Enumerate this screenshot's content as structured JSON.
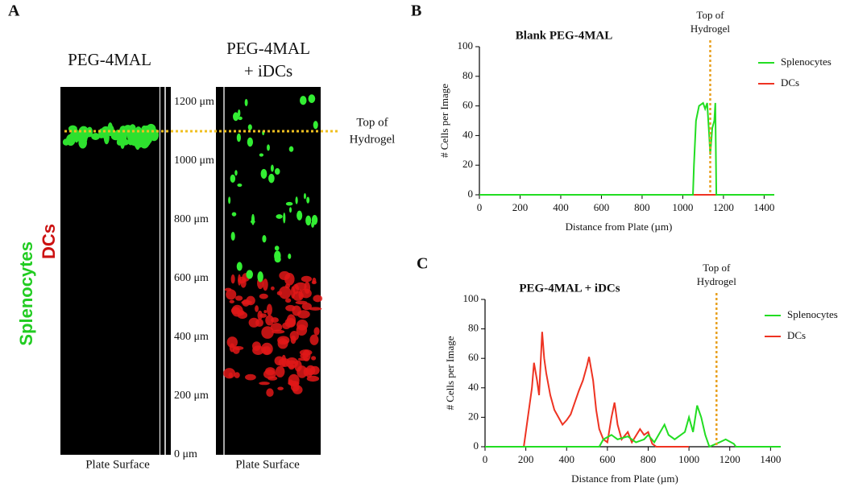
{
  "panel_a": {
    "letter": "A",
    "left_title": "PEG-4MAL",
    "right_title": [
      "PEG-4MAL",
      "+ iDCs"
    ],
    "left_footer": "Plate Surface",
    "right_footer": "Plate Surface",
    "scale_labels": [
      "0 μm",
      "200 μm",
      "400 μm",
      "600 μm",
      "800 μm",
      "1000 μm",
      "1200 μm"
    ],
    "annotation": [
      "Top of",
      "Hydrogel"
    ],
    "side_label_1": "Splenocytes",
    "side_label_2": "DCs"
  },
  "chart_data": [
    {
      "type": "line",
      "letter": "B",
      "title": "Blank PEG-4MAL",
      "x_label": "Distance from Plate (µm)",
      "y_label": "# Cells per Image",
      "xlim": [
        0,
        1450
      ],
      "ylim": [
        0,
        100
      ],
      "xticks": [
        0,
        200,
        400,
        600,
        800,
        1000,
        1200,
        1400
      ],
      "yticks": [
        0,
        20,
        40,
        60,
        80,
        100
      ],
      "threshold_x": 1135,
      "threshold_label": [
        "Top of",
        "Hydrogel"
      ],
      "threshold_color": "#e8a020",
      "series": [
        {
          "name": "Splenocytes",
          "color": "#22dd22",
          "x": [
            0,
            1050,
            1055,
            1065,
            1080,
            1100,
            1110,
            1120,
            1130,
            1135,
            1145,
            1155,
            1160,
            1165,
            1450
          ],
          "values": [
            0,
            0,
            20,
            50,
            60,
            62,
            58,
            62,
            40,
            27,
            45,
            50,
            62,
            0,
            0
          ]
        },
        {
          "name": "DCs",
          "color": "#ee3322",
          "x": [
            0,
            1450
          ],
          "values": [
            0,
            0
          ]
        }
      ]
    },
    {
      "type": "line",
      "letter": "C",
      "title": "PEG-4MAL + iDCs",
      "x_label": "Distance from Plate (µm)",
      "y_label": "# Cells per Image",
      "xlim": [
        0,
        1450
      ],
      "ylim": [
        0,
        100
      ],
      "xticks": [
        0,
        200,
        400,
        600,
        800,
        1000,
        1200,
        1400
      ],
      "yticks": [
        0,
        20,
        40,
        60,
        80,
        100
      ],
      "threshold_x": 1135,
      "threshold_label": [
        "Top of",
        "Hydrogel"
      ],
      "threshold_color": "#e8a020",
      "series": [
        {
          "name": "Splenocytes",
          "color": "#22dd22",
          "x": [
            0,
            560,
            580,
            620,
            650,
            700,
            740,
            780,
            800,
            830,
            880,
            900,
            930,
            980,
            1000,
            1020,
            1040,
            1060,
            1080,
            1100,
            1150,
            1180,
            1220,
            1230,
            1450
          ],
          "values": [
            0,
            0,
            5,
            8,
            5,
            7,
            3,
            5,
            8,
            3,
            15,
            8,
            5,
            10,
            20,
            10,
            28,
            20,
            8,
            0,
            3,
            5,
            2,
            0,
            0
          ]
        },
        {
          "name": "DCs",
          "color": "#ee3322",
          "x": [
            0,
            190,
            200,
            210,
            230,
            240,
            255,
            265,
            280,
            290,
            300,
            320,
            340,
            360,
            380,
            400,
            420,
            440,
            460,
            480,
            500,
            510,
            530,
            545,
            560,
            580,
            600,
            620,
            635,
            650,
            670,
            700,
            720,
            760,
            780,
            800,
            820,
            840,
            1000
          ],
          "values": [
            0,
            0,
            10,
            20,
            40,
            57,
            45,
            35,
            78,
            60,
            50,
            35,
            25,
            20,
            15,
            18,
            22,
            30,
            38,
            45,
            55,
            61,
            45,
            25,
            12,
            5,
            3,
            20,
            30,
            15,
            5,
            10,
            3,
            12,
            8,
            10,
            2,
            0,
            0
          ]
        }
      ]
    }
  ]
}
